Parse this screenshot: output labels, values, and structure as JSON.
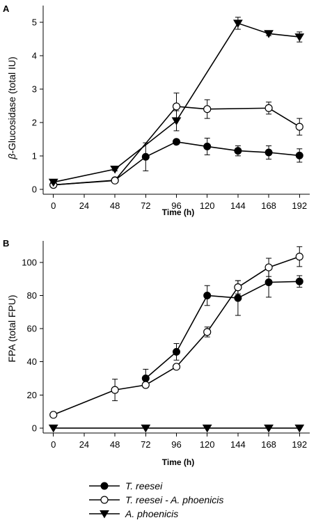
{
  "chart_data": [
    {
      "panel_label": "A",
      "type": "line",
      "ylabel_prefix": "β",
      "ylabel_rest": "-Glucosidase (total IU)",
      "xlabel": "Time (h)",
      "xlim": [
        -8,
        200
      ],
      "ylim": [
        -0.15,
        5.5
      ],
      "xticks": [
        0,
        24,
        48,
        72,
        96,
        120,
        144,
        168,
        192
      ],
      "yticks": [
        0,
        1,
        2,
        3,
        4,
        5
      ],
      "series": [
        {
          "name": "T. reesei",
          "marker": "filled-circle",
          "x": [
            0,
            48,
            72,
            96,
            120,
            144,
            168,
            192
          ],
          "y": [
            0.13,
            0.27,
            0.97,
            1.42,
            1.28,
            1.15,
            1.1,
            1.01
          ],
          "err": [
            0.05,
            0.05,
            0.42,
            0.06,
            0.25,
            0.15,
            0.2,
            0.2
          ]
        },
        {
          "name": "T. reesei - A. phoenicis",
          "marker": "open-circle",
          "x": [
            0,
            48,
            96,
            120,
            168,
            192
          ],
          "y": [
            0.13,
            0.26,
            2.48,
            2.4,
            2.43,
            1.87
          ],
          "err": [
            0.05,
            0.05,
            0.4,
            0.28,
            0.18,
            0.25
          ]
        },
        {
          "name": "A. phoenicis",
          "marker": "filled-triangle-down",
          "x": [
            0,
            48,
            96,
            144,
            168,
            192
          ],
          "y": [
            0.21,
            0.6,
            2.05,
            4.97,
            4.66,
            4.56
          ],
          "err": [
            0.03,
            0.05,
            0.3,
            0.18,
            0.06,
            0.15
          ]
        }
      ]
    },
    {
      "panel_label": "B",
      "type": "line",
      "ylabel": "FPA (total FPU)",
      "xlabel": "Time (h)",
      "xlim": [
        -8,
        200
      ],
      "ylim": [
        -3,
        113
      ],
      "xticks": [
        0,
        24,
        48,
        72,
        96,
        120,
        144,
        168,
        192
      ],
      "yticks": [
        0,
        20,
        40,
        60,
        80,
        100
      ],
      "series": [
        {
          "name": "T. reesei",
          "marker": "filled-circle",
          "x": [
            72,
            96,
            120,
            144,
            168,
            192
          ],
          "y": [
            30,
            46,
            80,
            78.5,
            88,
            88.5
          ],
          "err": [
            5.5,
            5.0,
            6.0,
            10.5,
            9.0,
            3.5
          ]
        },
        {
          "name": "T. reesei - A. phoenicis",
          "marker": "open-circle",
          "x": [
            0,
            48,
            72,
            96,
            120,
            144,
            168,
            192
          ],
          "y": [
            8,
            23,
            26,
            37,
            58,
            85,
            97,
            103.5
          ],
          "err": [
            0.5,
            6.5,
            1.5,
            1.0,
            3.0,
            4.0,
            5.5,
            6.0
          ]
        },
        {
          "name": "A. phoenicis",
          "marker": "filled-triangle-down",
          "x": [
            0,
            72,
            120,
            168,
            192
          ],
          "y": [
            0,
            0,
            0,
            0,
            0
          ],
          "err": [
            0,
            0,
            0,
            0,
            0
          ]
        }
      ]
    }
  ],
  "legend": [
    {
      "label": "T. reesei",
      "marker": "filled-circle"
    },
    {
      "label": "T. reesei - A. phoenicis",
      "marker": "open-circle"
    },
    {
      "label": "A. phoenicis",
      "marker": "filled-triangle-down"
    }
  ]
}
